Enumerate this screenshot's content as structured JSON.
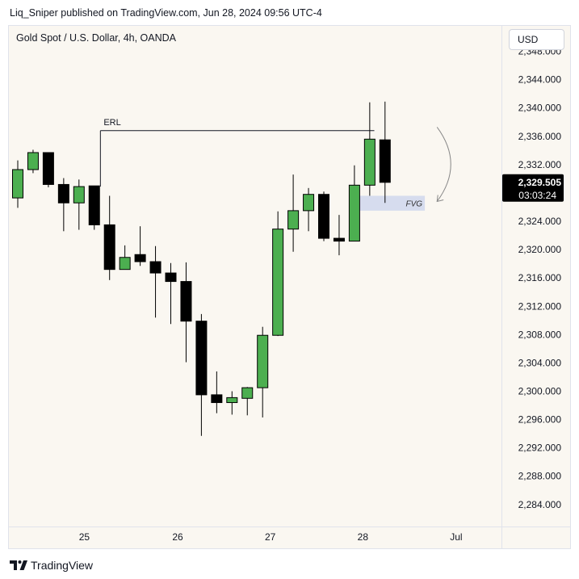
{
  "header": {
    "published_text": "Liq_Sniper published on TradingView.com, Jun 28, 2024 09:56 UTC-4"
  },
  "chart_header": {
    "symbol_title": "Gold Spot / U.S. Dollar, 4h, OANDA",
    "currency_label": "USD"
  },
  "footer": {
    "brand": "TradingView",
    "logo_icon": "tradingview-logo-icon"
  },
  "colors": {
    "bull": "#4caf50",
    "bear": "#000000",
    "wick": "#000000",
    "background": "#faf7f1",
    "fvg_zone": "#c9d3ec",
    "price_badge": "#000000"
  },
  "chart_data": {
    "type": "candlestick",
    "timeframe": "4h",
    "ylim": [
      2280.9,
      2351.6
    ],
    "y_ticks": [
      "2,348.000",
      "2,344.000",
      "2,340.000",
      "2,336.000",
      "2,332.000",
      "2,328.000",
      "2,324.000",
      "2,320.000",
      "2,316.000",
      "2,312.000",
      "2,308.000",
      "2,304.000",
      "2,300.000",
      "2,296.000",
      "2,292.000",
      "2,288.000",
      "2,284.000"
    ],
    "y_tick_values": [
      2348,
      2344,
      2340,
      2336,
      2332,
      2328,
      2324,
      2320,
      2316,
      2312,
      2308,
      2304,
      2300,
      2296,
      2292,
      2288,
      2284
    ],
    "x_ticks": [
      {
        "label": "25",
        "bar": 4.35
      },
      {
        "label": "26",
        "bar": 10.45
      },
      {
        "label": "27",
        "bar": 16.5
      },
      {
        "label": "28",
        "bar": 22.55
      },
      {
        "label": "Jul",
        "bar": 28.65
      }
    ],
    "candles": [
      {
        "o": 2327.3,
        "h": 2332.6,
        "l": 2325.9,
        "c": 2331.3
      },
      {
        "o": 2331.3,
        "h": 2334.1,
        "l": 2330.8,
        "c": 2333.7
      },
      {
        "o": 2333.7,
        "h": 2333.7,
        "l": 2328.8,
        "c": 2329.2
      },
      {
        "o": 2329.2,
        "h": 2330.1,
        "l": 2322.6,
        "c": 2326.6
      },
      {
        "o": 2326.6,
        "h": 2329.9,
        "l": 2322.8,
        "c": 2328.9
      },
      {
        "o": 2329.0,
        "h": 2329.0,
        "l": 2322.8,
        "c": 2323.5
      },
      {
        "o": 2323.5,
        "h": 2327.6,
        "l": 2315.7,
        "c": 2317.2
      },
      {
        "o": 2317.2,
        "h": 2320.6,
        "l": 2317.2,
        "c": 2318.9
      },
      {
        "o": 2319.3,
        "h": 2323.3,
        "l": 2317.7,
        "c": 2318.3
      },
      {
        "o": 2318.3,
        "h": 2320.5,
        "l": 2310.4,
        "c": 2316.7
      },
      {
        "o": 2316.7,
        "h": 2318.1,
        "l": 2309.5,
        "c": 2315.5
      },
      {
        "o": 2315.5,
        "h": 2318.2,
        "l": 2304.1,
        "c": 2309.9
      },
      {
        "o": 2309.9,
        "h": 2310.9,
        "l": 2293.7,
        "c": 2299.5
      },
      {
        "o": 2299.5,
        "h": 2302.8,
        "l": 2296.9,
        "c": 2298.4
      },
      {
        "o": 2298.4,
        "h": 2300.0,
        "l": 2296.7,
        "c": 2299.1
      },
      {
        "o": 2299.0,
        "h": 2300.6,
        "l": 2296.6,
        "c": 2300.5
      },
      {
        "o": 2300.5,
        "h": 2309.1,
        "l": 2296.3,
        "c": 2307.9
      },
      {
        "o": 2307.9,
        "h": 2325.4,
        "l": 2307.8,
        "c": 2322.9
      },
      {
        "o": 2322.9,
        "h": 2330.6,
        "l": 2319.7,
        "c": 2325.5
      },
      {
        "o": 2325.5,
        "h": 2328.7,
        "l": 2322.6,
        "c": 2327.8
      },
      {
        "o": 2327.8,
        "h": 2328.2,
        "l": 2321.2,
        "c": 2321.6
      },
      {
        "o": 2321.6,
        "h": 2324.9,
        "l": 2319.2,
        "c": 2321.2
      },
      {
        "o": 2321.2,
        "h": 2331.9,
        "l": 2321.2,
        "c": 2329.1
      },
      {
        "o": 2329.1,
        "h": 2340.8,
        "l": 2327.6,
        "c": 2335.6
      },
      {
        "o": 2335.5,
        "h": 2340.9,
        "l": 2326.6,
        "c": 2329.5
      }
    ],
    "annotations": {
      "erl": {
        "label": "ERL",
        "price": 2336.8,
        "start_bar": 5.4,
        "end_bar": 23.3,
        "marker_low_price": 2328.9
      },
      "fvg": {
        "label": "FVG",
        "top": 2327.6,
        "bottom": 2325.5,
        "start_bar": 21.8,
        "end_bar": 26.6
      },
      "curved_arrow": {
        "from_price": 2337.3,
        "to_price": 2326.8,
        "bar": 27.4
      }
    },
    "current_price": {
      "price": 2329.505,
      "label": "2,329.505",
      "countdown": "03:03:24"
    }
  }
}
